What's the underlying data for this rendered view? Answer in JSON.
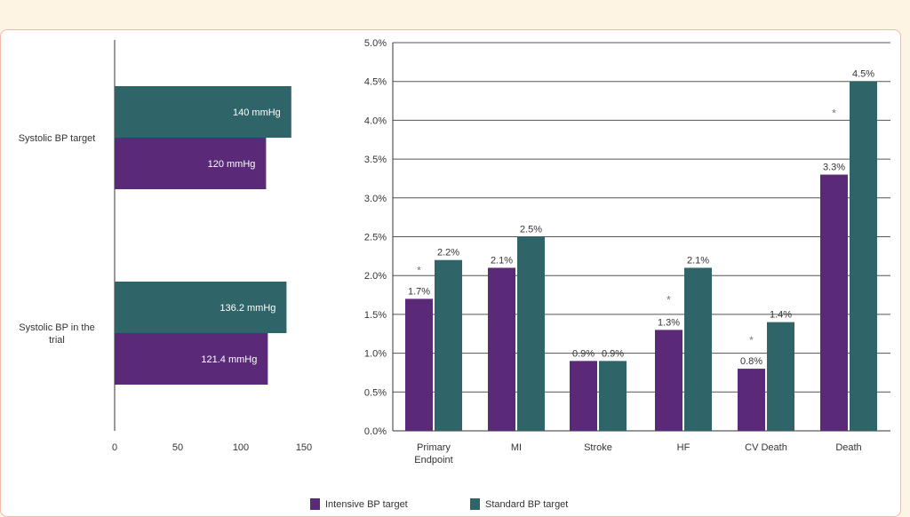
{
  "colors": {
    "intensive": "#5a2a78",
    "standard": "#2f6568"
  },
  "chart_data": [
    {
      "type": "bar",
      "orientation": "horizontal",
      "categories": [
        "Systolic BP target",
        "Systolic BP in the trial"
      ],
      "series": [
        {
          "name": "Standard BP target",
          "values": [
            140,
            136.2
          ],
          "labels": [
            "140 mmHg",
            "136.2 mmHg"
          ]
        },
        {
          "name": "Intensive BP target",
          "values": [
            120,
            121.4
          ],
          "labels": [
            "120 mmHg",
            "121.4 mmHg"
          ]
        }
      ],
      "xlim": [
        0,
        150
      ],
      "xticks": [
        "0",
        "50",
        "100",
        "150"
      ]
    },
    {
      "type": "bar",
      "categories": [
        "Primary Endpoint",
        "MI",
        "Stroke",
        "HF",
        "CV Death",
        "Death"
      ],
      "series": [
        {
          "name": "Intensive BP target",
          "values": [
            1.7,
            2.1,
            0.9,
            1.3,
            0.8,
            3.3
          ],
          "labels": [
            "1.7%",
            "2.1%",
            "0.9%",
            "1.3%",
            "0.8%",
            "3.3%"
          ]
        },
        {
          "name": "Standard BP target",
          "values": [
            2.2,
            2.5,
            0.9,
            2.1,
            1.4,
            4.5
          ],
          "labels": [
            "2.2%",
            "2.5%",
            "0.9%",
            "2.1%",
            "1.4%",
            "4.5%"
          ]
        }
      ],
      "significance_marker": "*",
      "significant": [
        true,
        false,
        false,
        true,
        true,
        true
      ],
      "ylim": [
        0,
        5
      ],
      "yticks": [
        "0.0%",
        "0.5%",
        "1.0%",
        "1.5%",
        "2.0%",
        "2.5%",
        "3.0%",
        "3.5%",
        "4.0%",
        "4.5%",
        "5.0%"
      ],
      "grid": true
    }
  ],
  "legend": {
    "placement": "bottom",
    "items": [
      {
        "label": "Intensive BP target",
        "color": "#5a2a78"
      },
      {
        "label": "Standard BP target",
        "color": "#2f6568"
      }
    ]
  }
}
